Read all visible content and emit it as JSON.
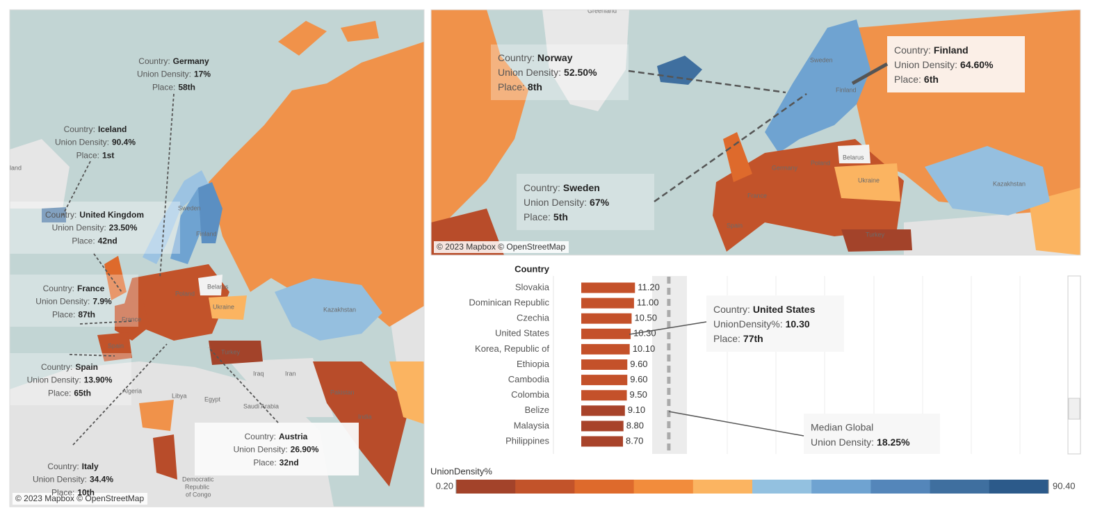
{
  "annotation_keys": {
    "country": "Country:",
    "density": "Union Density:",
    "place": "Place:"
  },
  "left_map": {
    "attribution": "© 2023 Mapbox © OpenStreetMap",
    "labels": [
      "Belarus",
      "Kazakhstan",
      "Iraq",
      "Iran",
      "Algeria",
      "Libya",
      "Egypt",
      "Saudi Arabia",
      "Turkey",
      "Finland",
      "Sweden",
      "Ukraine",
      "Pakistan",
      "India",
      "Spain",
      "France",
      "Poland",
      "Democratic",
      "Republic",
      "of Congo",
      "land"
    ],
    "annotations": [
      {
        "country": "Germany",
        "density": "17%",
        "place": "58th"
      },
      {
        "country": "Iceland",
        "density": "90.4%",
        "place": "1st"
      },
      {
        "country": "United Kingdom",
        "density": "23.50%",
        "place": "42nd"
      },
      {
        "country": "France",
        "density": "7.9%",
        "place": "87th"
      },
      {
        "country": "Spain",
        "density": "13.90%",
        "place": "65th"
      },
      {
        "country": "Austria",
        "density": "26.90%",
        "place": "32nd"
      },
      {
        "country": "Italy",
        "density": "34.4%",
        "place": "10th"
      }
    ]
  },
  "right_map": {
    "attribution": "© 2023 Mapbox © OpenStreetMap",
    "labels": [
      "Greenland",
      "Belarus",
      "Ukraine",
      "Kazakhstan",
      "Poland",
      "Germany",
      "France",
      "Spain",
      "Turkey",
      "Sweden",
      "Finland"
    ],
    "annotations": [
      {
        "country": "Norway",
        "density": "52.50%",
        "place": "8th"
      },
      {
        "country": "Finland",
        "density": "64.60%",
        "place": "6th"
      },
      {
        "country": "Sweden",
        "density": "67%",
        "place": "5th"
      }
    ]
  },
  "chart_data": {
    "type": "bar",
    "orientation": "horizontal",
    "column_header": "Country",
    "categories": [
      "Slovakia",
      "Dominican Republic",
      "Czechia",
      "United States",
      "Korea, Republic of",
      "Ethiopia",
      "Cambodia",
      "Colombia",
      "Belize",
      "Malaysia",
      "Philippines"
    ],
    "values": [
      11.2,
      11.0,
      10.5,
      10.3,
      10.1,
      9.6,
      9.6,
      9.5,
      9.1,
      8.8,
      8.7
    ],
    "value_labels": [
      "11.20",
      "11.00",
      "10.50",
      "10.30",
      "10.10",
      "9.60",
      "9.60",
      "9.50",
      "9.10",
      "8.80",
      "8.70"
    ],
    "colors": [
      "#c4512a",
      "#c4512a",
      "#c4512a",
      "#c4512a",
      "#c4512a",
      "#c4512a",
      "#c4512a",
      "#c4512a",
      "#a8432a",
      "#a8432a",
      "#a8432a"
    ],
    "xlim": [
      0,
      100
    ],
    "reference_line": {
      "value": 18.25,
      "title": "Median Global",
      "value_label": "18.25%"
    },
    "tooltip": {
      "country": "United States",
      "value_key": "UnionDensity%:",
      "value": "10.30",
      "place": "77th"
    }
  },
  "legend": {
    "title": "UnionDensity%",
    "min": {
      "value": 0.2,
      "label": "0.20"
    },
    "max": {
      "value": 90.4,
      "label": "90.40"
    },
    "colors": [
      "#a3432a",
      "#c2532a",
      "#de6a2c",
      "#f28c3c",
      "#fbb461",
      "#93c1e0",
      "#6fa3d1",
      "#5486ba",
      "#3f6f9f",
      "#2c5a8a"
    ]
  }
}
